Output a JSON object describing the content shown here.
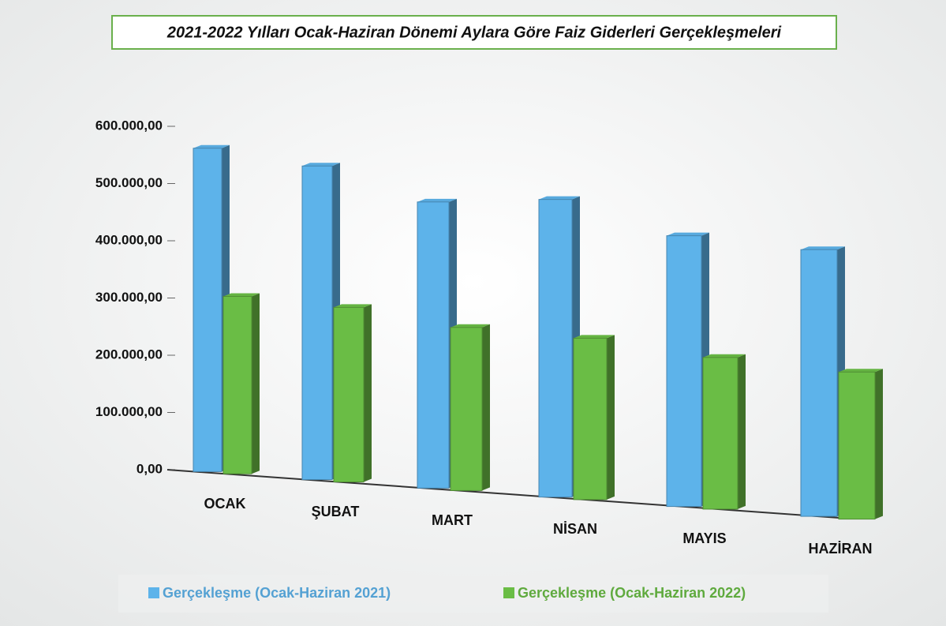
{
  "chart_data": {
    "type": "bar",
    "title": "2021-2022 Yılları Ocak-Haziran Dönemi Aylara Göre Faiz Giderleri Gerçekleşmeleri",
    "categories": [
      "OCAK",
      "ŞUBAT",
      "MART",
      "NİSAN",
      "MAYIS",
      "HAZİRAN"
    ],
    "series": [
      {
        "name": "Gerçekleşme (Ocak-Haziran 2021)",
        "color": "#5db3ea",
        "values": [
          565000,
          548000,
          500000,
          520000,
          473000,
          466000
        ]
      },
      {
        "name": "Gerçekleşme (Ocak-Haziran 2022)",
        "color": "#6abd45",
        "values": [
          310000,
          305000,
          285000,
          282000,
          265000,
          257000
        ]
      }
    ],
    "ylim": [
      0,
      600000
    ],
    "yticks": [
      {
        "value": 0,
        "label": "0,00"
      },
      {
        "value": 100000,
        "label": "100.000,00"
      },
      {
        "value": 200000,
        "label": "200.000,00"
      },
      {
        "value": 300000,
        "label": "300.000,00"
      },
      {
        "value": 400000,
        "label": "400.000,00"
      },
      {
        "value": 500000,
        "label": "500.000,00"
      },
      {
        "value": 600000,
        "label": "600.000,00"
      }
    ],
    "legend": "bottom"
  }
}
